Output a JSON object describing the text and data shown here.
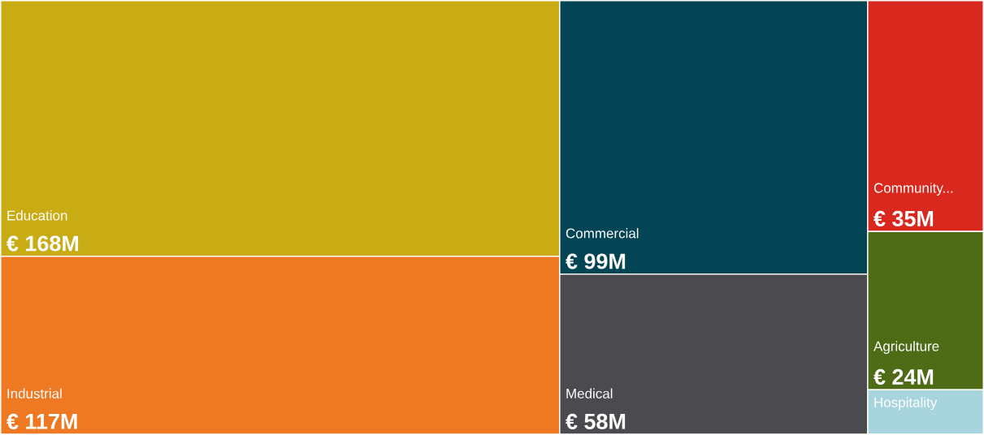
{
  "chart_data": {
    "type": "other",
    "categories": [
      "Education",
      "Industrial",
      "Commercial",
      "Medical",
      "Community...",
      "Agriculture",
      "Hospitality"
    ],
    "values": [
      168,
      117,
      99,
      58,
      35,
      24,
      null
    ],
    "value_labels": [
      "€ 168M",
      "€ 117M",
      "€ 99M",
      "€ 58M",
      "€ 35M",
      "€ 24M",
      null
    ],
    "colors": [
      "#c9ab14",
      "#ef7822",
      "#044555",
      "#4b4b4f",
      "#d9291f",
      "#4e6b16",
      "#a8d5dd"
    ]
  }
}
